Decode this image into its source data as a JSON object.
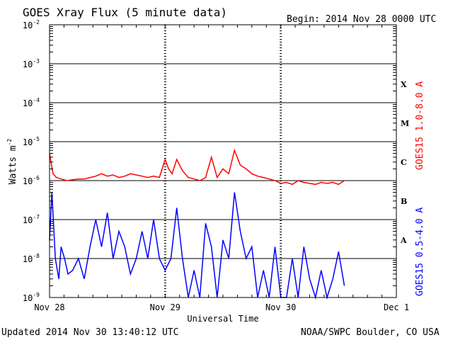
{
  "chart_data": {
    "type": "line",
    "title": "GOES Xray Flux (5 minute data)",
    "begin_label": "Begin:  2014 Nov 28 0000 UTC",
    "ylabel": "Watts m",
    "ylabel_exp": "-2",
    "xlabel": "Universal Time",
    "yscale": "log",
    "ylim": [
      1e-09,
      0.01
    ],
    "xlim_days": [
      0,
      3
    ],
    "y_ticks": [
      {
        "value": 0.01,
        "base": "10",
        "exp": "-2"
      },
      {
        "value": 0.001,
        "base": "10",
        "exp": "-3"
      },
      {
        "value": 0.0001,
        "base": "10",
        "exp": "-4"
      },
      {
        "value": 1e-05,
        "base": "10",
        "exp": "-5"
      },
      {
        "value": 1e-06,
        "base": "10",
        "exp": "-6"
      },
      {
        "value": 1e-07,
        "base": "10",
        "exp": "-7"
      },
      {
        "value": 1e-08,
        "base": "10",
        "exp": "-8"
      },
      {
        "value": 1e-09,
        "base": "10",
        "exp": "-9"
      }
    ],
    "x_ticks": [
      {
        "label": "Nov 28",
        "day": 0
      },
      {
        "label": "Nov 29",
        "day": 1
      },
      {
        "label": "Nov 30",
        "day": 2
      },
      {
        "label": "Dec 1",
        "day": 3
      }
    ],
    "flare_classes": [
      {
        "label": "X",
        "flux": 0.0003
      },
      {
        "label": "M",
        "flux": 3e-05
      },
      {
        "label": "C",
        "flux": 3e-06
      },
      {
        "label": "B",
        "flux": 3e-07
      },
      {
        "label": "A",
        "flux": 3e-08
      }
    ],
    "series": [
      {
        "name": "GOES15 1.0-8.0 A",
        "color": "#ff0000",
        "x_days": [
          0,
          0.03,
          0.06,
          0.1,
          0.15,
          0.2,
          0.25,
          0.3,
          0.35,
          0.4,
          0.45,
          0.5,
          0.55,
          0.6,
          0.65,
          0.7,
          0.75,
          0.8,
          0.85,
          0.9,
          0.95,
          1.0,
          1.03,
          1.06,
          1.1,
          1.15,
          1.2,
          1.25,
          1.3,
          1.35,
          1.4,
          1.45,
          1.5,
          1.55,
          1.6,
          1.65,
          1.7,
          1.75,
          1.8,
          1.85,
          1.9,
          1.95,
          2.0,
          2.05,
          2.1,
          2.15,
          2.2,
          2.25,
          2.3,
          2.35,
          2.4,
          2.45,
          2.5,
          2.55
        ],
        "values": [
          5e-06,
          1.5e-06,
          1.2e-06,
          1.1e-06,
          1e-06,
          1.05e-06,
          1.1e-06,
          1.1e-06,
          1.2e-06,
          1.3e-06,
          1.5e-06,
          1.3e-06,
          1.4e-06,
          1.2e-06,
          1.3e-06,
          1.5e-06,
          1.4e-06,
          1.3e-06,
          1.2e-06,
          1.3e-06,
          1.2e-06,
          3.5e-06,
          2e-06,
          1.5e-06,
          3.5e-06,
          1.8e-06,
          1.2e-06,
          1.1e-06,
          1e-06,
          1.2e-06,
          4e-06,
          1.2e-06,
          2e-06,
          1.5e-06,
          6e-06,
          2.5e-06,
          2e-06,
          1.5e-06,
          1.3e-06,
          1.2e-06,
          1.1e-06,
          1e-06,
          8.5e-07,
          9e-07,
          8e-07,
          1e-06,
          9e-07,
          8.5e-07,
          8e-07,
          9e-07,
          8.5e-07,
          9e-07,
          8e-07,
          1e-06
        ]
      },
      {
        "name": "GOES15 0.5-4.0 A",
        "color": "#0000ff",
        "x_days": [
          0,
          0.02,
          0.05,
          0.08,
          0.1,
          0.13,
          0.16,
          0.2,
          0.25,
          0.3,
          0.35,
          0.4,
          0.45,
          0.5,
          0.55,
          0.6,
          0.65,
          0.7,
          0.75,
          0.8,
          0.85,
          0.9,
          0.95,
          1.0,
          1.05,
          1.1,
          1.15,
          1.2,
          1.25,
          1.3,
          1.35,
          1.4,
          1.45,
          1.5,
          1.55,
          1.6,
          1.65,
          1.7,
          1.75,
          1.8,
          1.85,
          1.9,
          1.95,
          2.0,
          2.05,
          2.1,
          2.15,
          2.2,
          2.25,
          2.3,
          2.35,
          2.4,
          2.45,
          2.5,
          2.55
        ],
        "values": [
          3e-08,
          5e-07,
          1e-08,
          3e-09,
          2e-08,
          1e-08,
          4e-09,
          5e-09,
          1e-08,
          3e-09,
          2e-08,
          1e-07,
          2e-08,
          1.5e-07,
          1e-08,
          5e-08,
          2e-08,
          4e-09,
          1e-08,
          5e-08,
          1e-08,
          1e-07,
          1e-08,
          5e-09,
          1e-08,
          2e-07,
          1e-08,
          1e-09,
          5e-09,
          1e-09,
          8e-08,
          2e-08,
          1e-09,
          3e-08,
          1e-08,
          5e-07,
          5e-08,
          1e-08,
          2e-08,
          1e-09,
          5e-09,
          1e-09,
          2e-08,
          1e-09,
          1e-09,
          1e-08,
          1e-09,
          2e-08,
          3e-09,
          1e-09,
          5e-09,
          1e-09,
          3e-09,
          1.5e-08,
          2e-09
        ]
      }
    ]
  },
  "footer": {
    "updated": "Updated 2014 Nov 30 13:40:12 UTC",
    "credit": "NOAA/SWPC Boulder, CO USA"
  }
}
